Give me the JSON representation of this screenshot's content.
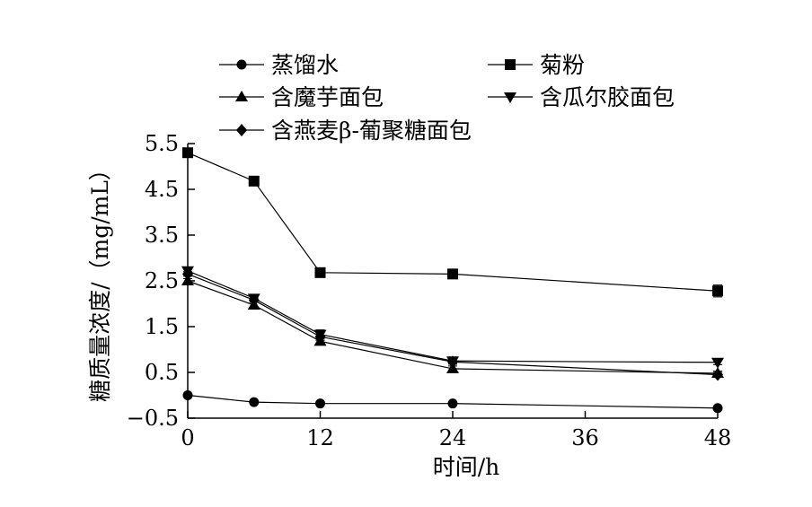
{
  "chart_data": {
    "type": "line",
    "xlabel": "时间/h",
    "ylabel": "糖质量浓度/（mg/mL）",
    "xlim": [
      0,
      48
    ],
    "ylim": [
      -0.5,
      5.5
    ],
    "xticks": [
      0,
      12,
      24,
      36,
      48
    ],
    "yticks": [
      -0.5,
      0.5,
      1.5,
      2.5,
      3.5,
      4.5,
      5.5
    ],
    "ytick_labels": [
      "−0.5",
      "0.5",
      "1.5",
      "2.5",
      "3.5",
      "4.5",
      "5.5"
    ],
    "x": [
      0,
      6,
      12,
      24,
      48
    ],
    "grid": false,
    "legend_position": "top",
    "series": [
      {
        "name": "蒸馏水",
        "marker": "circle",
        "values": [
          0.0,
          -0.15,
          -0.18,
          -0.18,
          -0.28
        ],
        "errors": [
          0.03,
          0.03,
          0.03,
          0.03,
          0.04
        ]
      },
      {
        "name": "菊粉",
        "marker": "square",
        "values": [
          5.3,
          4.68,
          2.68,
          2.65,
          2.28
        ],
        "errors": [
          0.06,
          0.05,
          0.1,
          0.1,
          0.13
        ]
      },
      {
        "name": "含魔芋面包",
        "marker": "triangle-up",
        "values": [
          2.5,
          1.97,
          1.18,
          0.58,
          0.48
        ],
        "errors": [
          0.05,
          0.06,
          0.08,
          0.06,
          0.05
        ]
      },
      {
        "name": "含瓜尔胶面包",
        "marker": "triangle-down",
        "values": [
          2.72,
          2.12,
          1.33,
          0.75,
          0.72
        ],
        "errors": [
          0.05,
          0.05,
          0.1,
          0.05,
          0.05
        ]
      },
      {
        "name": "含燕麦β-葡聚糖面包",
        "marker": "diamond",
        "values": [
          2.65,
          2.08,
          1.28,
          0.73,
          0.45
        ],
        "errors": [
          0.05,
          0.05,
          0.08,
          0.05,
          0.05
        ]
      }
    ]
  }
}
